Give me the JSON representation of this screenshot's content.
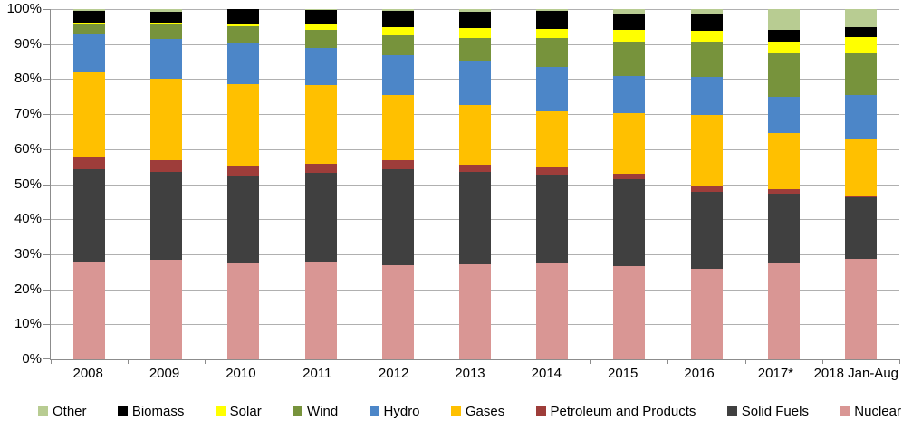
{
  "chart_data": {
    "type": "bar",
    "stacked": true,
    "title": "",
    "xlabel": "",
    "ylabel": "",
    "ylim": [
      0,
      100
    ],
    "grid": true,
    "legend_position": "bottom",
    "categories": [
      "2008",
      "2009",
      "2010",
      "2011",
      "2012",
      "2013",
      "2014",
      "2015",
      "2016",
      "2017*",
      "2018 Jan-Aug"
    ],
    "y_axis": {
      "tick_labels": [
        "0%",
        "10%",
        "20%",
        "30%",
        "40%",
        "50%",
        "60%",
        "70%",
        "80%",
        "90%",
        "100%"
      ]
    },
    "series": [
      {
        "name": "Nuclear",
        "color": "#d99694",
        "values": [
          27.9,
          28.3,
          27.5,
          27.8,
          26.9,
          27.1,
          27.5,
          26.7,
          25.8,
          27.5,
          28.8
        ]
      },
      {
        "name": "Solid Fuels",
        "color": "#404040",
        "values": [
          26.4,
          25.2,
          24.9,
          25.4,
          27.4,
          26.4,
          25.3,
          24.6,
          22.0,
          19.7,
          17.5
        ]
      },
      {
        "name": "Petroleum and Products",
        "color": "#9e3d3a",
        "values": [
          3.6,
          3.4,
          2.9,
          2.6,
          2.6,
          2.1,
          1.9,
          1.6,
          1.7,
          1.3,
          0.6
        ]
      },
      {
        "name": "Gases",
        "color": "#ffc000",
        "values": [
          24.3,
          23.3,
          23.3,
          22.4,
          18.5,
          17.1,
          16.0,
          17.4,
          20.3,
          16.1,
          16.0
        ]
      },
      {
        "name": "Hydro",
        "color": "#4c86c8",
        "values": [
          10.6,
          11.2,
          11.9,
          10.8,
          11.5,
          12.5,
          12.8,
          10.6,
          10.8,
          10.4,
          12.5
        ]
      },
      {
        "name": "Wind",
        "color": "#77933c",
        "values": [
          2.8,
          4.3,
          4.6,
          5.2,
          5.6,
          6.6,
          8.2,
          9.9,
          10.2,
          12.4,
          11.9
        ]
      },
      {
        "name": "Solar",
        "color": "#ffff00",
        "values": [
          0.5,
          0.4,
          0.7,
          1.3,
          2.4,
          2.8,
          2.6,
          3.2,
          3.0,
          3.3,
          4.7
        ]
      },
      {
        "name": "Biomass",
        "color": "#000000",
        "values": [
          3.5,
          3.1,
          4.1,
          4.2,
          4.5,
          4.7,
          5.1,
          4.8,
          4.7,
          3.5,
          2.8
        ]
      },
      {
        "name": "Other",
        "color": "#b8cc92",
        "values": [
          0.4,
          0.8,
          0.1,
          0.3,
          0.6,
          0.7,
          0.6,
          1.2,
          1.5,
          5.8,
          5.2
        ]
      }
    ]
  },
  "legend": {
    "items": [
      {
        "label": "Other",
        "color": "#b8cc92"
      },
      {
        "label": "Biomass",
        "color": "#000000"
      },
      {
        "label": "Solar",
        "color": "#ffff00"
      },
      {
        "label": "Wind",
        "color": "#77933c"
      },
      {
        "label": "Hydro",
        "color": "#4c86c8"
      },
      {
        "label": "Gases",
        "color": "#ffc000"
      },
      {
        "label": "Petroleum and Products",
        "color": "#9e3d3a"
      },
      {
        "label": "Solid Fuels",
        "color": "#404040"
      },
      {
        "label": "Nuclear",
        "color": "#d99694"
      }
    ]
  },
  "colors": {
    "gridline": "#b0b0b0",
    "axis": "#8c8c8c",
    "background": "#ffffff",
    "text": "#000000"
  }
}
